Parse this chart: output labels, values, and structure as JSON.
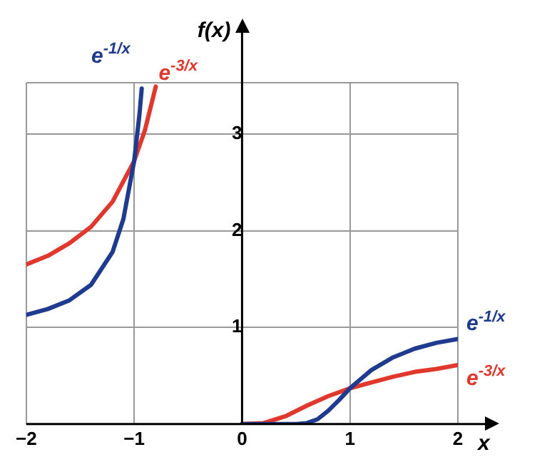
{
  "chart_data": {
    "type": "line",
    "xlabel": "x",
    "ylabel": "f(x)",
    "xlim": [
      -2,
      2
    ],
    "ylim": [
      0,
      3.53
    ],
    "xticks": [
      -2,
      -1,
      0,
      1,
      2
    ],
    "yticks": [
      {
        "value": 0,
        "label": null
      },
      1,
      2,
      3
    ],
    "grid": true,
    "legend": false,
    "marker": "none",
    "line_style": "solid",
    "series": [
      {
        "name": "e$^{-1/x}$",
        "color": "#1f3b8f",
        "x": [
          -2,
          -1.8,
          -1.6,
          -1.4,
          -1.2,
          -1.1,
          -1,
          -0.95,
          -0.93,
          null,
          0,
          0.4,
          0.5,
          0.6,
          0.7,
          0.8,
          0.9,
          1,
          1.2,
          1.4,
          1.6,
          1.8,
          2
        ],
        "values": [
          1.13,
          1.19,
          1.28,
          1.44,
          1.78,
          2.12,
          2.72,
          3.21,
          3.47,
          null,
          0,
          0,
          0,
          0.01,
          0.05,
          0.14,
          0.25,
          0.37,
          0.56,
          0.69,
          0.78,
          0.84,
          0.88
        ]
      },
      {
        "name": "e$^{-3/x}$",
        "color": "#e0382c",
        "x": [
          -2,
          -1.8,
          -1.6,
          -1.4,
          -1.2,
          -1,
          -0.9,
          -0.8,
          null,
          0,
          0.2,
          0.4,
          0.6,
          0.8,
          1,
          1.2,
          1.4,
          1.6,
          1.8,
          2
        ],
        "values": [
          1.65,
          1.74,
          1.87,
          2.04,
          2.3,
          2.72,
          3.04,
          3.49,
          null,
          0,
          0.01,
          0.08,
          0.19,
          0.29,
          0.37,
          0.43,
          0.49,
          0.54,
          0.57,
          0.61
        ]
      }
    ]
  }
}
